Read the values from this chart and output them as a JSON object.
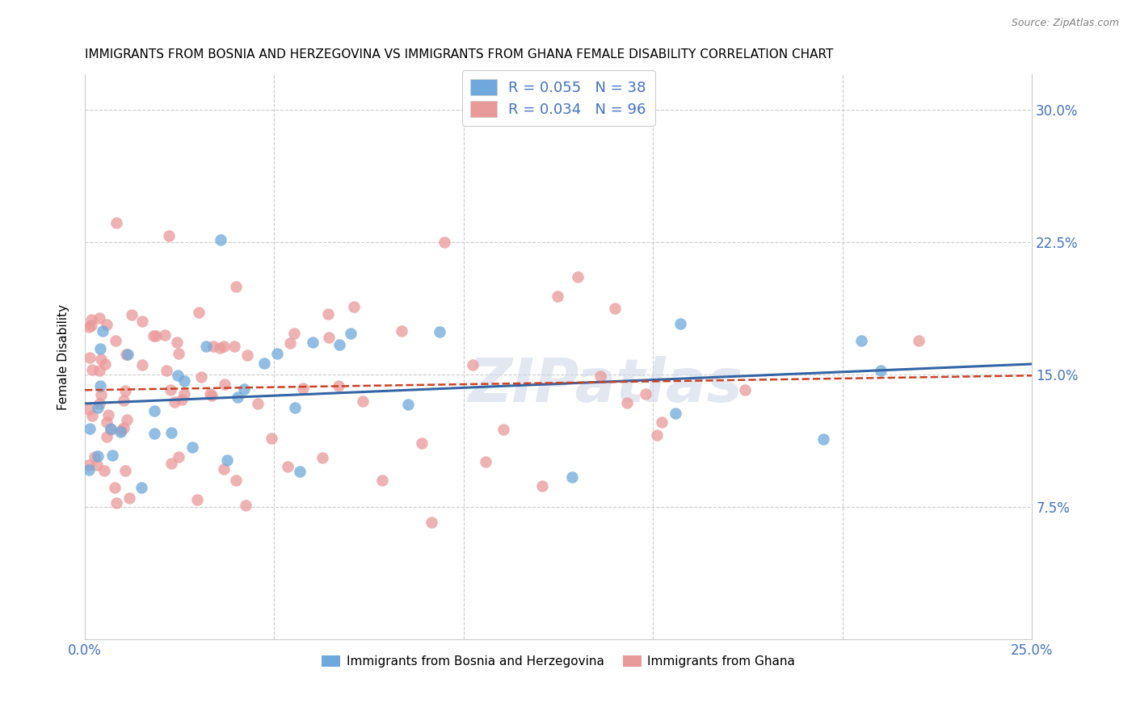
{
  "title": "IMMIGRANTS FROM BOSNIA AND HERZEGOVINA VS IMMIGRANTS FROM GHANA FEMALE DISABILITY CORRELATION CHART",
  "source": "Source: ZipAtlas.com",
  "ylabel": "Female Disability",
  "xlim": [
    0.0,
    0.25
  ],
  "ylim": [
    0.0,
    0.32
  ],
  "r_blue": 0.055,
  "n_blue": 38,
  "r_pink": 0.034,
  "n_pink": 96,
  "blue_color": "#6fa8dc",
  "pink_color": "#ea9999",
  "blue_line_color": "#3465a4",
  "pink_line_color": "#cc4125",
  "watermark": "ZIPatlas",
  "legend_label_blue": "Immigrants from Bosnia and Herzegovina",
  "legend_label_pink": "Immigrants from Ghana",
  "legend_text_color": "#4472c4",
  "grid_color": "#cccccc",
  "title_fontsize": 11,
  "axis_tick_fontsize": 12,
  "scatter_size": 110,
  "scatter_alpha": 0.75
}
